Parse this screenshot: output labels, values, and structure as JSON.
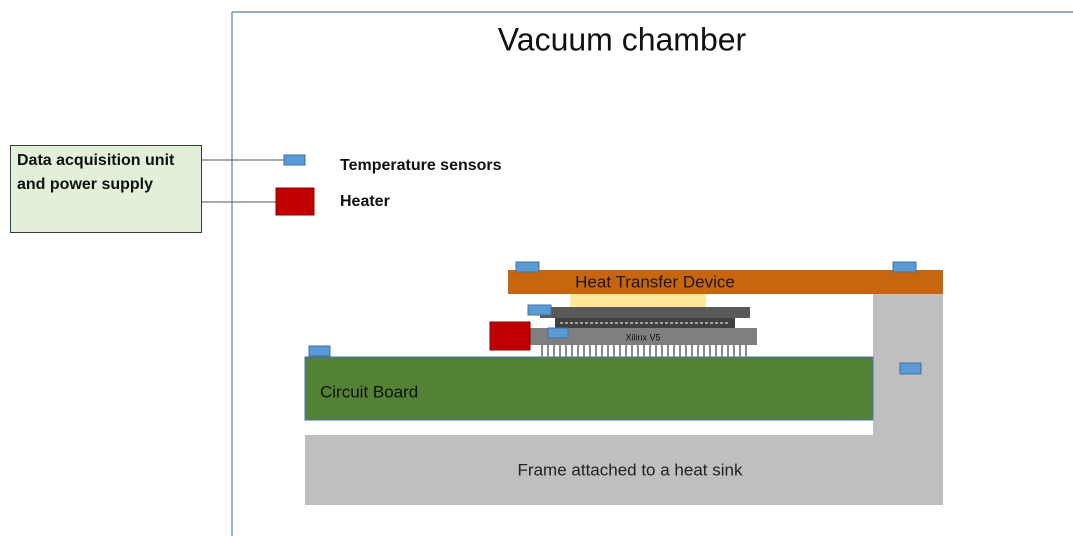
{
  "title": "Vacuum chamber",
  "daq_box": "Data acquisition unit and power supply",
  "legend": {
    "sensor": "Temperature sensors",
    "heater": "Heater"
  },
  "labels": {
    "heat_transfer": "Heat Transfer Device",
    "chip": "Xilinx V5",
    "board": "Circuit Board",
    "frame": "Frame attached to a heat sink"
  }
}
